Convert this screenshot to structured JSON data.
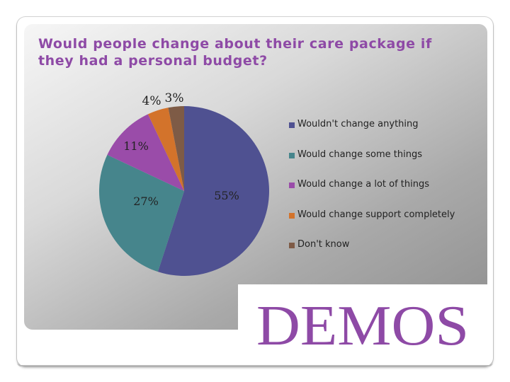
{
  "title_lines": [
    "Would people change about their care package if",
    "they had a personal budget?"
  ],
  "chart_data": {
    "type": "pie",
    "title": "Would people change about their care package if they had a personal budget?",
    "categories": [
      "Wouldn't change anything",
      "Would change some things",
      "Would change a lot of things",
      "Would change support completely",
      "Don't know"
    ],
    "values": [
      55,
      27,
      11,
      4,
      3
    ],
    "labels": [
      "55%",
      "27%",
      "11%",
      "4%",
      "3%"
    ],
    "colors": [
      "#4f5191",
      "#46858c",
      "#9a4ca9",
      "#d3732b",
      "#7e5b46"
    ],
    "legend_position": "right"
  },
  "logo": {
    "text": "DEMOS",
    "color": "#8e4aa6"
  }
}
